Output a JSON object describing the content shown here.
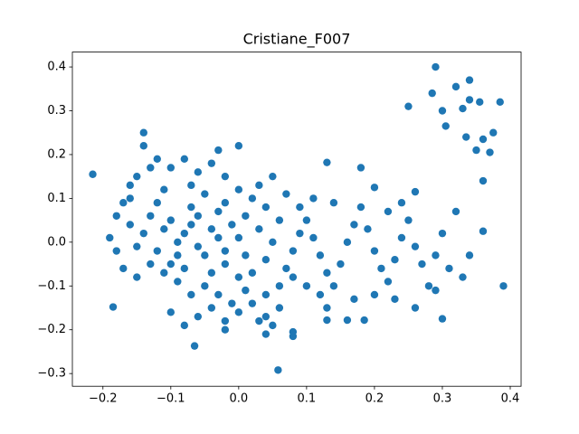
{
  "chart_data": {
    "type": "scatter",
    "title": "Cristiane_F007",
    "color": "#1f77b4",
    "xlim": [
      -0.245,
      0.416
    ],
    "ylim": [
      -0.329,
      0.434
    ],
    "xticks": [
      {
        "value": -0.2,
        "label": "−0.2"
      },
      {
        "value": -0.1,
        "label": "−0.1"
      },
      {
        "value": 0,
        "label": "0.0"
      },
      0.1,
      0.2,
      0.3,
      0.4
    ],
    "yticks": [
      {
        "value": -0.3,
        "label": "−0.3"
      },
      {
        "value": -0.2,
        "label": "−0.2"
      },
      {
        "value": -0.1,
        "label": "−0.1"
      },
      {
        "value": 0,
        "label": "0.0"
      },
      0.1,
      0.2,
      0.3,
      0.4
    ],
    "x": [
      -0.1,
      -0.08,
      -0.06,
      -0.04,
      -0.02,
      0.0,
      -0.09,
      -0.07,
      -0.05,
      -0.03,
      -0.11,
      -0.12,
      -0.13,
      -0.14,
      -0.15,
      -0.16,
      -0.17,
      -0.16,
      -0.15,
      -0.13,
      -0.12,
      -0.1,
      -0.08,
      -0.06,
      -0.04,
      -0.02,
      0.0,
      0.02,
      0.04,
      0.03,
      0.05,
      0.01,
      0.03,
      0.05,
      0.04,
      0.02,
      0.01,
      -0.01,
      -0.03,
      -0.05,
      -0.07,
      -0.09,
      -0.11,
      -0.13,
      -0.15,
      -0.17,
      -0.18,
      -0.19,
      -0.18,
      -0.16,
      -0.1,
      -0.08,
      -0.06,
      -0.04,
      -0.02,
      0.0,
      0.02,
      0.04,
      0.06,
      0.07,
      0.08,
      0.09,
      0.1,
      0.11,
      0.12,
      0.13,
      0.14,
      0.15,
      0.16,
      0.17,
      0.18,
      0.19,
      0.2,
      0.21,
      0.22,
      0.23,
      0.24,
      0.25,
      0.26,
      0.27,
      0.28,
      0.29,
      0.3,
      0.31,
      0.32,
      0.33,
      0.34,
      0.22,
      0.24,
      0.17,
      0.2,
      0.23,
      0.26,
      0.29,
      0.14,
      0.11,
      0.09,
      0.07,
      0.06,
      0.08,
      0.1,
      0.12,
      0.06,
      0.04,
      -0.09,
      -0.07,
      -0.05,
      -0.03,
      -0.01,
      -0.06,
      -0.08,
      -0.04,
      -0.02,
      -0.11,
      -0.12,
      -0.1,
      -0.02,
      0.0,
      0.01,
      -0.07,
      -0.215,
      -0.185,
      -0.065,
      0.058,
      0.29,
      0.34,
      0.32,
      0.285,
      0.25,
      0.3,
      0.33,
      0.34,
      0.355,
      0.385,
      0.305,
      0.335,
      0.36,
      0.375,
      0.35,
      0.37,
      0.36,
      0.36,
      0.39,
      0.3,
      0.13,
      0.18,
      0.2,
      0.26,
      0.0,
      -0.14,
      -0.14,
      -0.03,
      0.13,
      0.13,
      0.16,
      0.185,
      0.08,
      0.08,
      0.04,
      -0.02,
      0.05,
      0.03
    ],
    "values": [
      0.05,
      0.02,
      -0.01,
      0.03,
      -0.05,
      -0.08,
      -0.03,
      0.08,
      0.11,
      0.07,
      0.12,
      0.09,
      0.06,
      0.02,
      -0.01,
      0.04,
      0.09,
      0.13,
      0.15,
      0.17,
      0.19,
      0.17,
      0.19,
      0.16,
      0.18,
      0.15,
      0.12,
      0.1,
      0.08,
      0.13,
      0.15,
      0.06,
      0.03,
      0.0,
      -0.04,
      -0.07,
      -0.11,
      -0.14,
      -0.12,
      -0.1,
      -0.12,
      -0.09,
      -0.07,
      -0.05,
      -0.08,
      -0.06,
      -0.02,
      0.01,
      0.06,
      0.1,
      -0.16,
      -0.19,
      -0.17,
      -0.15,
      -0.18,
      -0.16,
      -0.14,
      -0.12,
      -0.1,
      -0.06,
      -0.02,
      0.02,
      0.05,
      0.01,
      -0.03,
      -0.07,
      -0.1,
      -0.05,
      0.0,
      0.04,
      0.08,
      0.03,
      -0.02,
      -0.06,
      -0.09,
      -0.04,
      0.01,
      0.05,
      -0.01,
      -0.05,
      -0.1,
      -0.03,
      0.02,
      -0.06,
      0.07,
      -0.08,
      -0.03,
      0.07,
      0.09,
      -0.13,
      -0.12,
      -0.13,
      -0.15,
      -0.11,
      0.09,
      0.1,
      0.08,
      0.11,
      0.05,
      -0.08,
      -0.1,
      -0.12,
      -0.15,
      -0.17,
      0.0,
      0.04,
      -0.03,
      0.01,
      0.04,
      0.06,
      -0.06,
      -0.07,
      0.09,
      0.03,
      -0.02,
      -0.05,
      -0.02,
      0.01,
      -0.03,
      0.13,
      0.155,
      -0.148,
      -0.237,
      -0.292,
      0.4,
      0.37,
      0.355,
      0.34,
      0.31,
      0.3,
      0.305,
      0.325,
      0.32,
      0.32,
      0.265,
      0.24,
      0.235,
      0.25,
      0.21,
      0.205,
      0.14,
      0.025,
      -0.1,
      -0.175,
      0.182,
      0.17,
      0.125,
      0.115,
      0.22,
      0.25,
      0.22,
      0.21,
      -0.15,
      -0.178,
      -0.178,
      -0.178,
      -0.205,
      -0.215,
      -0.21,
      -0.2,
      -0.19,
      -0.18
    ]
  }
}
